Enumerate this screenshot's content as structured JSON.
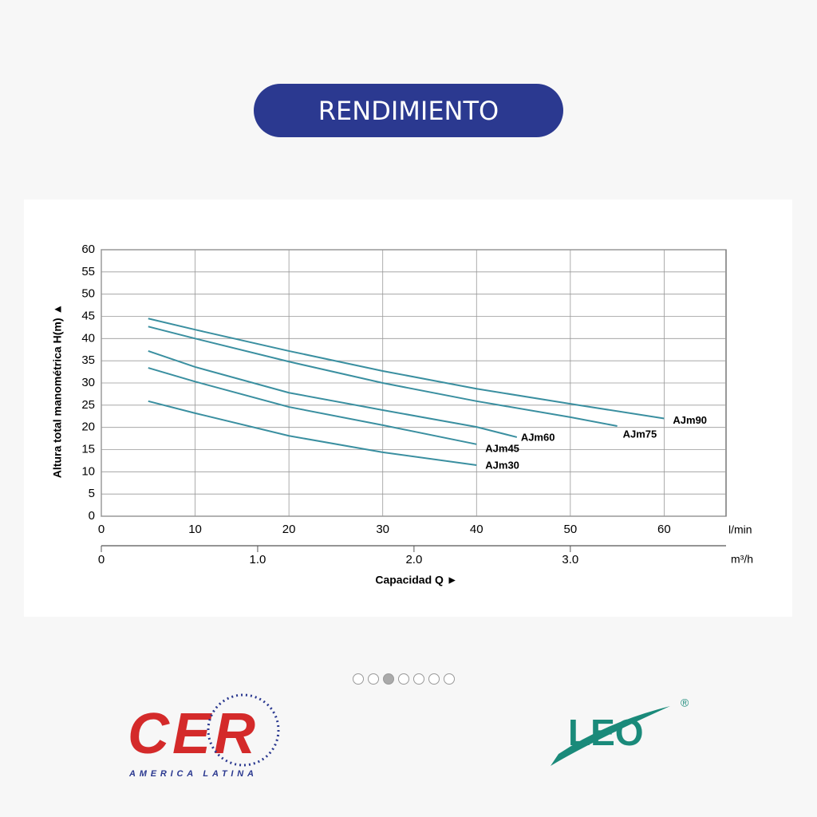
{
  "header": {
    "title": "RENDIMIENTO"
  },
  "chart_data": {
    "type": "line",
    "y_label": "Altura total manométrica H(m) ▲",
    "x_label": "Capacidad Q ►",
    "x_unit": "l/min",
    "x2_unit": "m³/h",
    "xlim": [
      0,
      66.6
    ],
    "xticks": [
      0,
      10,
      20,
      30,
      40,
      50,
      60
    ],
    "x2lim": [
      0,
      3.996
    ],
    "x2ticks": [
      0,
      {
        "value": 1,
        "label": "1.0"
      },
      {
        "value": 2,
        "label": "2.0"
      },
      {
        "value": 3,
        "label": "3.0"
      }
    ],
    "ylim": [
      0,
      60
    ],
    "yticks": [
      0,
      5,
      10,
      15,
      20,
      25,
      30,
      35,
      40,
      45,
      50,
      55,
      60
    ],
    "grid": true,
    "series": [
      {
        "name": "AJm90",
        "color": "#3a8fa0",
        "x": [
          5,
          10,
          20,
          30,
          40,
          50,
          60
        ],
        "values": [
          44.5,
          42,
          37.2,
          32.7,
          28.7,
          25.3,
          22
        ]
      },
      {
        "name": "AJm75",
        "color": "#3a8fa0",
        "x": [
          5,
          10,
          20,
          30,
          40,
          50,
          55
        ],
        "values": [
          42.7,
          40,
          34.8,
          30,
          25.9,
          22.3,
          20.3
        ]
      },
      {
        "name": "AJm60",
        "color": "#3a8fa0",
        "x": [
          5,
          10,
          20,
          30,
          40,
          44.3
        ],
        "values": [
          37.2,
          33.6,
          27.8,
          23.9,
          20.1,
          17.8
        ]
      },
      {
        "name": "AJm45",
        "color": "#3a8fa0",
        "x": [
          5,
          10,
          20,
          30,
          40
        ],
        "values": [
          33.4,
          30.3,
          24.6,
          20.5,
          16.2
        ]
      },
      {
        "name": "AJm30",
        "color": "#3a8fa0",
        "x": [
          5,
          10,
          20,
          30,
          40
        ],
        "values": [
          25.9,
          23.2,
          18.1,
          14.4,
          11.5
        ]
      }
    ]
  },
  "logos": {
    "cer": "CER",
    "cer_sub": "AMERICA LATINA",
    "leo": "LEO",
    "leo_mark": "®"
  }
}
